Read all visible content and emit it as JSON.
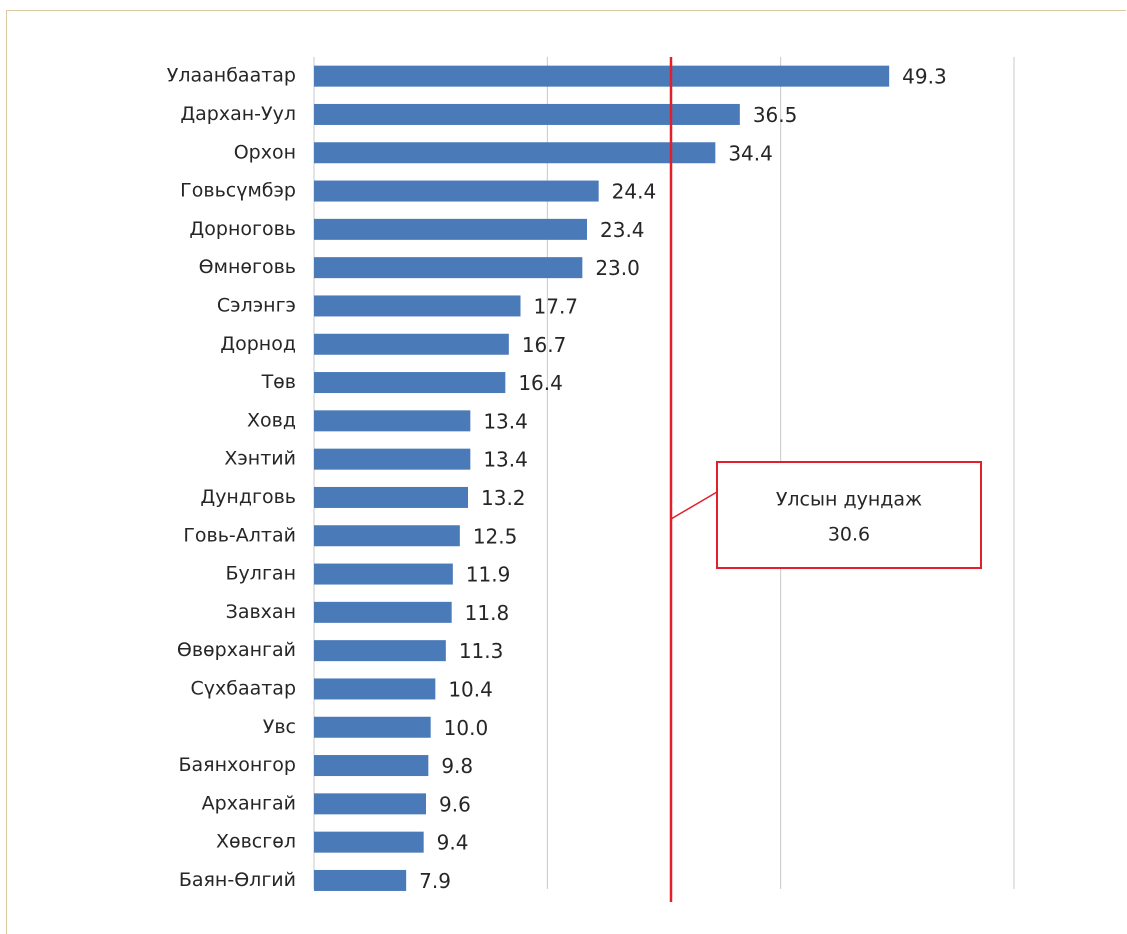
{
  "chart_data": {
    "type": "bar",
    "orientation": "horizontal",
    "title": "",
    "xlabel": "",
    "ylabel": "",
    "categories": [
      "Улаанбаатар",
      "Дархан-Уул",
      "Орхон",
      "Говьсүмбэр",
      "Дорноговь",
      "Өмнөговь",
      "Сэлэнгэ",
      "Дорнод",
      "Төв",
      "Ховд",
      "Хэнтий",
      "Дундговь",
      "Говь-Алтай",
      "Булган",
      "Завхан",
      "Өвөрхангай",
      "Сүхбаатар",
      "Увс",
      "Баянхонгор",
      "Архангай",
      "Хөвсгөл",
      "Баян-Өлгий"
    ],
    "values": [
      49.3,
      36.5,
      34.4,
      24.4,
      23.4,
      23.0,
      17.7,
      16.7,
      16.4,
      13.4,
      13.4,
      13.2,
      12.5,
      11.9,
      11.8,
      11.3,
      10.4,
      10.0,
      9.8,
      9.6,
      9.4,
      7.9
    ],
    "value_labels": [
      "49.3",
      "36.5",
      "34.4",
      "24.4",
      "23.4",
      "23.0",
      "17.7",
      "16.7",
      "16.4",
      "13.4",
      "13.4",
      "13.2",
      "12.5",
      "11.9",
      "11.8",
      "11.3",
      "10.4",
      "10.0",
      "9.8",
      "9.6",
      "9.4",
      "7.9"
    ],
    "xlim": [
      0,
      60
    ],
    "grid": true,
    "bar_color": "#4a7ab8",
    "reference_line": {
      "value": 30.6,
      "color": "#e0202a",
      "label": "Улсын дундаж",
      "value_label": "30.6"
    }
  }
}
